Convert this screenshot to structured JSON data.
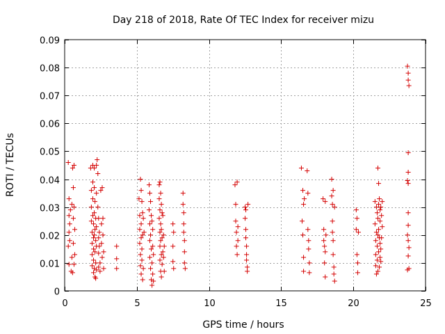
{
  "chart_data": {
    "type": "scatter",
    "title": "Day 218 of 2018, Rate Of TEC Index for receiver mizu",
    "xlabel": "GPS time / hours",
    "ylabel": "ROTI / TECUs",
    "xlim": [
      0,
      25
    ],
    "ylim": [
      0,
      0.09
    ],
    "xticks": [
      0,
      5,
      10,
      15,
      20,
      25
    ],
    "xtick_labels": [
      "0",
      "5",
      "10",
      "15",
      "20",
      "25"
    ],
    "yticks": [
      0,
      0.01,
      0.02,
      0.03,
      0.04,
      0.05,
      0.06,
      0.07,
      0.08,
      0.09
    ],
    "ytick_labels": [
      "0",
      "0.01",
      "0.02",
      "0.03",
      "0.04",
      "0.05",
      "0.06",
      "0.07",
      "0.08",
      "0.09"
    ],
    "grid": true,
    "marker": "+",
    "color": "#d40000",
    "series": [
      {
        "name": "ROTI",
        "points": [
          [
            0.25,
            0.046
          ],
          [
            0.3,
            0.033
          ],
          [
            0.3,
            0.027
          ],
          [
            0.3,
            0.021
          ],
          [
            0.25,
            0.016
          ],
          [
            0.3,
            0.0095
          ],
          [
            0.35,
            0.024
          ],
          [
            0.35,
            0.018
          ],
          [
            0.4,
            0.029
          ],
          [
            0.45,
            0.007
          ],
          [
            0.5,
            0.031
          ],
          [
            0.5,
            0.012
          ],
          [
            0.55,
            0.044
          ],
          [
            0.55,
            0.0065
          ],
          [
            0.6,
            0.037
          ],
          [
            0.6,
            0.026
          ],
          [
            0.6,
            0.017
          ],
          [
            0.65,
            0.045
          ],
          [
            0.65,
            0.03
          ],
          [
            0.65,
            0.0095
          ],
          [
            0.7,
            0.022
          ],
          [
            0.7,
            0.013
          ],
          [
            1.8,
            0.044
          ],
          [
            1.85,
            0.036
          ],
          [
            1.85,
            0.03
          ],
          [
            1.85,
            0.025
          ],
          [
            1.9,
            0.021
          ],
          [
            1.9,
            0.017
          ],
          [
            1.9,
            0.013
          ],
          [
            1.9,
            0.009
          ],
          [
            1.95,
            0.045
          ],
          [
            1.95,
            0.039
          ],
          [
            1.95,
            0.033
          ],
          [
            1.95,
            0.027
          ],
          [
            2.0,
            0.024
          ],
          [
            2.0,
            0.019
          ],
          [
            2.0,
            0.015
          ],
          [
            2.0,
            0.011
          ],
          [
            2.0,
            0.0065
          ],
          [
            2.05,
            0.044
          ],
          [
            2.05,
            0.037
          ],
          [
            2.05,
            0.028
          ],
          [
            2.05,
            0.02
          ],
          [
            2.05,
            0.008
          ],
          [
            2.1,
            0.032
          ],
          [
            2.1,
            0.022
          ],
          [
            2.1,
            0.014
          ],
          [
            2.1,
            0.005
          ],
          [
            2.15,
            0.026
          ],
          [
            2.15,
            0.018
          ],
          [
            2.15,
            0.01
          ],
          [
            2.15,
            0.0045
          ],
          [
            2.2,
            0.045
          ],
          [
            2.2,
            0.035
          ],
          [
            2.2,
            0.023
          ],
          [
            2.2,
            0.016
          ],
          [
            2.2,
            0.0075
          ],
          [
            2.25,
            0.047
          ],
          [
            2.3,
            0.042
          ],
          [
            2.3,
            0.03
          ],
          [
            2.35,
            0.026
          ],
          [
            2.35,
            0.019
          ],
          [
            2.35,
            0.0135
          ],
          [
            2.35,
            0.0085
          ],
          [
            2.4,
            0.021
          ],
          [
            2.4,
            0.016
          ],
          [
            2.45,
            0.01
          ],
          [
            2.45,
            0.007
          ],
          [
            2.5,
            0.036
          ],
          [
            2.55,
            0.024
          ],
          [
            2.55,
            0.017
          ],
          [
            2.6,
            0.012
          ],
          [
            2.6,
            0.037
          ],
          [
            2.65,
            0.026
          ],
          [
            2.65,
            0.02
          ],
          [
            2.7,
            0.014
          ],
          [
            2.7,
            0.008
          ],
          [
            3.6,
            0.016
          ],
          [
            3.6,
            0.0115
          ],
          [
            3.6,
            0.008
          ],
          [
            5.15,
            0.033
          ],
          [
            5.2,
            0.027
          ],
          [
            5.2,
            0.022
          ],
          [
            5.2,
            0.017
          ],
          [
            5.25,
            0.04
          ],
          [
            5.25,
            0.013
          ],
          [
            5.25,
            0.009
          ],
          [
            5.3,
            0.036
          ],
          [
            5.3,
            0.024
          ],
          [
            5.3,
            0.019
          ],
          [
            5.3,
            0.006
          ],
          [
            5.35,
            0.032
          ],
          [
            5.35,
            0.015
          ],
          [
            5.35,
            0.011
          ],
          [
            5.4,
            0.028
          ],
          [
            5.4,
            0.02
          ],
          [
            5.4,
            0.004
          ],
          [
            5.45,
            0.026
          ],
          [
            5.45,
            0.008
          ],
          [
            5.5,
            0.021
          ],
          [
            5.85,
            0.038
          ],
          [
            5.85,
            0.029
          ],
          [
            5.9,
            0.035
          ],
          [
            5.9,
            0.024
          ],
          [
            5.9,
            0.018
          ],
          [
            5.9,
            0.012
          ],
          [
            5.95,
            0.032
          ],
          [
            5.95,
            0.02
          ],
          [
            5.95,
            0.008
          ],
          [
            6.0,
            0.027
          ],
          [
            6.0,
            0.015
          ],
          [
            6.0,
            0.004
          ],
          [
            6.05,
            0.025
          ],
          [
            6.05,
            0.01
          ],
          [
            6.05,
            0.002
          ],
          [
            6.1,
            0.022
          ],
          [
            6.1,
            0.016
          ],
          [
            6.1,
            0.006
          ],
          [
            6.15,
            0.013
          ],
          [
            6.15,
            0.0035
          ],
          [
            6.55,
            0.038
          ],
          [
            6.55,
            0.033
          ],
          [
            6.55,
            0.026
          ],
          [
            6.6,
            0.039
          ],
          [
            6.6,
            0.029
          ],
          [
            6.6,
            0.021
          ],
          [
            6.6,
            0.016
          ],
          [
            6.6,
            0.011
          ],
          [
            6.65,
            0.035
          ],
          [
            6.65,
            0.024
          ],
          [
            6.65,
            0.018
          ],
          [
            6.65,
            0.007
          ],
          [
            6.7,
            0.031
          ],
          [
            6.7,
            0.022
          ],
          [
            6.7,
            0.013
          ],
          [
            6.7,
            0.005
          ],
          [
            6.75,
            0.028
          ],
          [
            6.75,
            0.019
          ],
          [
            6.75,
            0.0095
          ],
          [
            6.8,
            0.027
          ],
          [
            6.8,
            0.014
          ],
          [
            6.85,
            0.02
          ],
          [
            6.85,
            0.012
          ],
          [
            6.9,
            0.016
          ],
          [
            6.9,
            0.007
          ],
          [
            7.5,
            0.024
          ],
          [
            7.5,
            0.016
          ],
          [
            7.5,
            0.0105
          ],
          [
            7.55,
            0.021
          ],
          [
            7.55,
            0.008
          ],
          [
            8.2,
            0.035
          ],
          [
            8.2,
            0.031
          ],
          [
            8.25,
            0.028
          ],
          [
            8.25,
            0.024
          ],
          [
            8.25,
            0.021
          ],
          [
            8.3,
            0.018
          ],
          [
            8.3,
            0.014
          ],
          [
            8.3,
            0.01
          ],
          [
            8.35,
            0.008
          ],
          [
            11.8,
            0.038
          ],
          [
            11.85,
            0.031
          ],
          [
            11.85,
            0.025
          ],
          [
            11.9,
            0.021
          ],
          [
            11.9,
            0.016
          ],
          [
            11.95,
            0.039
          ],
          [
            11.95,
            0.013
          ],
          [
            12.0,
            0.018
          ],
          [
            12.0,
            0.023
          ],
          [
            12.5,
            0.03
          ],
          [
            12.5,
            0.026
          ],
          [
            12.55,
            0.029
          ],
          [
            12.55,
            0.022
          ],
          [
            12.55,
            0.019
          ],
          [
            12.6,
            0.016
          ],
          [
            12.6,
            0.013
          ],
          [
            12.6,
            0.011
          ],
          [
            12.65,
            0.0085
          ],
          [
            12.65,
            0.007
          ],
          [
            12.7,
            0.031
          ],
          [
            16.4,
            0.044
          ],
          [
            16.45,
            0.025
          ],
          [
            16.5,
            0.036
          ],
          [
            16.5,
            0.02
          ],
          [
            16.55,
            0.031
          ],
          [
            16.55,
            0.012
          ],
          [
            16.55,
            0.007
          ],
          [
            16.6,
            0.033
          ],
          [
            16.8,
            0.043
          ],
          [
            16.85,
            0.035
          ],
          [
            16.85,
            0.022
          ],
          [
            16.9,
            0.018
          ],
          [
            16.9,
            0.015
          ],
          [
            16.95,
            0.01
          ],
          [
            16.95,
            0.0065
          ],
          [
            17.9,
            0.033
          ],
          [
            17.95,
            0.022
          ],
          [
            17.95,
            0.018
          ],
          [
            18.0,
            0.016
          ],
          [
            18.0,
            0.01
          ],
          [
            18.05,
            0.032
          ],
          [
            18.05,
            0.014
          ],
          [
            18.05,
            0.005
          ],
          [
            18.1,
            0.02
          ],
          [
            18.5,
            0.04
          ],
          [
            18.5,
            0.034
          ],
          [
            18.55,
            0.031
          ],
          [
            18.55,
            0.025
          ],
          [
            18.55,
            0.021
          ],
          [
            18.6,
            0.018
          ],
          [
            18.6,
            0.036
          ],
          [
            18.6,
            0.013
          ],
          [
            18.65,
            0.0085
          ],
          [
            18.65,
            0.006
          ],
          [
            18.7,
            0.0035
          ],
          [
            18.7,
            0.03
          ],
          [
            20.2,
            0.029
          ],
          [
            20.2,
            0.022
          ],
          [
            20.25,
            0.026
          ],
          [
            20.25,
            0.013
          ],
          [
            20.3,
            0.01
          ],
          [
            20.3,
            0.0065
          ],
          [
            20.35,
            0.021
          ],
          [
            21.5,
            0.032
          ],
          [
            21.5,
            0.024
          ],
          [
            21.55,
            0.018
          ],
          [
            21.55,
            0.013
          ],
          [
            21.55,
            0.009
          ],
          [
            21.6,
            0.03
          ],
          [
            21.6,
            0.021
          ],
          [
            21.6,
            0.006
          ],
          [
            21.65,
            0.028
          ],
          [
            21.65,
            0.016
          ],
          [
            21.65,
            0.011
          ],
          [
            21.7,
            0.044
          ],
          [
            21.7,
            0.026
          ],
          [
            21.7,
            0.02
          ],
          [
            21.7,
            0.007
          ],
          [
            21.75,
            0.0385
          ],
          [
            21.75,
            0.031
          ],
          [
            21.75,
            0.022
          ],
          [
            21.75,
            0.014
          ],
          [
            21.8,
            0.033
          ],
          [
            21.8,
            0.019
          ],
          [
            21.8,
            0.0085
          ],
          [
            21.85,
            0.029
          ],
          [
            21.85,
            0.025
          ],
          [
            21.85,
            0.017
          ],
          [
            21.85,
            0.012
          ],
          [
            21.9,
            0.03
          ],
          [
            21.9,
            0.015
          ],
          [
            21.9,
            0.0105
          ],
          [
            21.95,
            0.027
          ],
          [
            21.95,
            0.019
          ],
          [
            22.0,
            0.032
          ],
          [
            22.0,
            0.023
          ],
          [
            23.75,
            0.0805
          ],
          [
            23.8,
            0.078
          ],
          [
            23.8,
            0.0755
          ],
          [
            23.85,
            0.0735
          ],
          [
            23.8,
            0.0495
          ],
          [
            23.8,
            0.0425
          ],
          [
            23.75,
            0.0395
          ],
          [
            23.8,
            0.0385
          ],
          [
            23.8,
            0.028
          ],
          [
            23.8,
            0.0235
          ],
          [
            23.75,
            0.02
          ],
          [
            23.8,
            0.018
          ],
          [
            23.85,
            0.0155
          ],
          [
            23.8,
            0.0125
          ],
          [
            23.85,
            0.008
          ],
          [
            23.75,
            0.0075
          ]
        ]
      }
    ]
  }
}
